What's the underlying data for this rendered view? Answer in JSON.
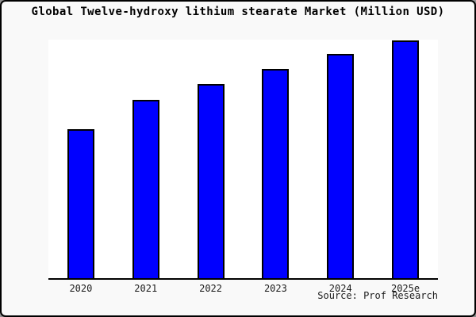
{
  "chart_data": {
    "type": "bar",
    "title": "Global Twelve-hydroxy lithium stearate Market (Million USD)",
    "source": "Source: Prof Research",
    "categories": [
      "2020",
      "2021",
      "2022",
      "2023",
      "2024",
      "2025e"
    ],
    "values": [
      62.5,
      74.8,
      81.4,
      87.7,
      94.0,
      99.7
    ],
    "xlabel": "",
    "ylabel": "",
    "ylim": [
      0,
      100
    ],
    "y_axis_ticks_visible": false,
    "gridlines": false,
    "legend": false,
    "bar_color": "#0000ff",
    "bar_border_color": "#000000",
    "plot_background": "#ffffff",
    "page_background": "#f9f9f9"
  }
}
